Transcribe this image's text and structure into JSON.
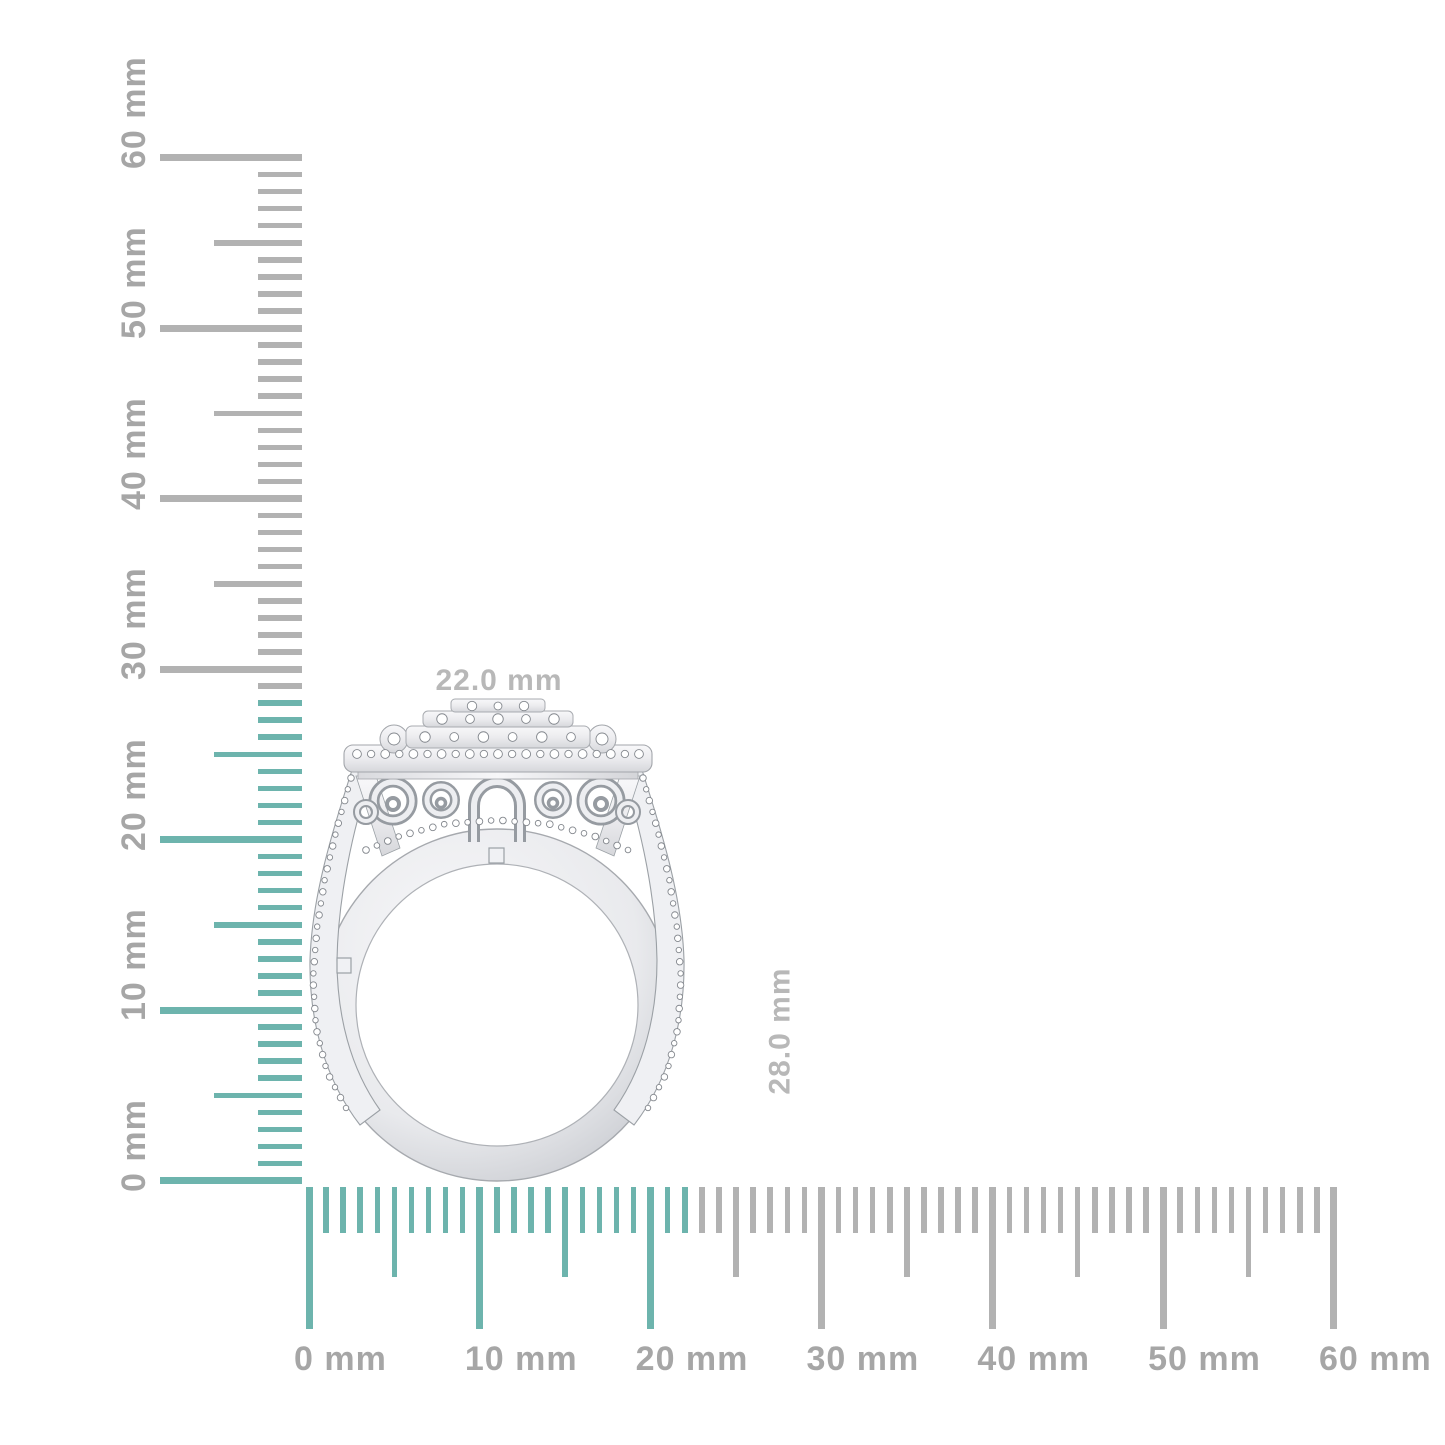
{
  "page": {
    "background": "#ffffff"
  },
  "rulers": {
    "unit": "mm",
    "tick_color": "#b2b2b2",
    "highlight_color": "#6db4ad",
    "label_color": "#a6a6a6",
    "vertical": {
      "min_mm": 0,
      "max_mm": 60,
      "minor_step_mm": 1,
      "medium_step_mm": 5,
      "major_step_mm": 10,
      "highlight_to_mm": 28,
      "labels": [
        "0 mm",
        "10 mm",
        "20 mm",
        "30 mm",
        "40 mm",
        "50 mm",
        "60 mm"
      ]
    },
    "horizontal": {
      "min_mm": 0,
      "max_mm": 60,
      "minor_step_mm": 1,
      "medium_step_mm": 5,
      "major_step_mm": 10,
      "highlight_to_mm": 22,
      "labels": [
        "0 mm",
        "10 mm",
        "20 mm",
        "30 mm",
        "40 mm",
        "50 mm",
        "60 mm"
      ]
    }
  },
  "ring": {
    "width_label": "22.0 mm",
    "height_label": "28.0 mm",
    "dimension_label_color": "#b8b8b8"
  }
}
